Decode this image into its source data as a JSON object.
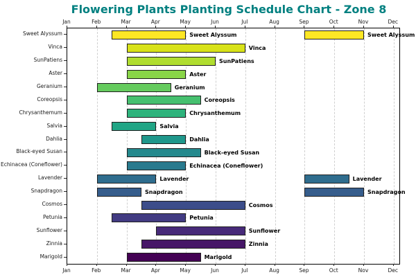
{
  "title": {
    "text": "Flowering Plants Planting Schedule Chart - Zone 8",
    "color": "#008080"
  },
  "chart_data": {
    "type": "bar",
    "subtype": "gantt-planting-schedule",
    "title": "Flowering Plants Planting Schedule Chart - Zone 8",
    "months": [
      "Jan",
      "Feb",
      "Mar",
      "Apr",
      "May",
      "Jun",
      "Jul",
      "Aug",
      "Sep",
      "Oct",
      "Nov",
      "Dec"
    ],
    "x_axis": {
      "unit": "month",
      "range": [
        1,
        12.2
      ],
      "ticks_top": true,
      "ticks_bottom": true,
      "grid": "vertical-dashed"
    },
    "legend": "none",
    "rows": [
      {
        "label": "Sweet Alyssum",
        "color": "#fde725",
        "bars": [
          {
            "start_month": 2.5,
            "end_month": 5.0
          },
          {
            "start_month": 9.0,
            "end_month": 11.0
          }
        ]
      },
      {
        "label": "Vinca",
        "color": "#d8e219",
        "bars": [
          {
            "start_month": 3.0,
            "end_month": 7.0
          }
        ]
      },
      {
        "label": "SunPatiens",
        "color": "#b0dd2f",
        "bars": [
          {
            "start_month": 3.0,
            "end_month": 6.0
          }
        ]
      },
      {
        "label": "Aster",
        "color": "#89d548",
        "bars": [
          {
            "start_month": 3.0,
            "end_month": 5.0
          }
        ]
      },
      {
        "label": "Geranium",
        "color": "#65cb5e",
        "bars": [
          {
            "start_month": 2.0,
            "end_month": 4.5
          }
        ]
      },
      {
        "label": "Coreopsis",
        "color": "#46c06f",
        "bars": [
          {
            "start_month": 3.0,
            "end_month": 5.5
          }
        ]
      },
      {
        "label": "Chrysanthemum",
        "color": "#2eb37c",
        "bars": [
          {
            "start_month": 3.0,
            "end_month": 5.0
          }
        ]
      },
      {
        "label": "Salvia",
        "color": "#21a585",
        "bars": [
          {
            "start_month": 2.5,
            "end_month": 4.0
          }
        ]
      },
      {
        "label": "Dahlia",
        "color": "#1f978b",
        "bars": [
          {
            "start_month": 3.5,
            "end_month": 5.0
          }
        ]
      },
      {
        "label": "Black-eyed Susan",
        "color": "#24898d",
        "bars": [
          {
            "start_month": 3.0,
            "end_month": 5.5
          }
        ]
      },
      {
        "label": "Echinacea (Coneflower)",
        "color": "#297a8e",
        "bars": [
          {
            "start_month": 3.0,
            "end_month": 5.0
          }
        ]
      },
      {
        "label": "Lavender",
        "color": "#2f6d8e",
        "bars": [
          {
            "start_month": 2.0,
            "end_month": 4.0
          },
          {
            "start_month": 9.0,
            "end_month": 10.5
          }
        ]
      },
      {
        "label": "Snapdragon",
        "color": "#365d8c",
        "bars": [
          {
            "start_month": 2.0,
            "end_month": 3.5
          },
          {
            "start_month": 9.0,
            "end_month": 11.0
          }
        ]
      },
      {
        "label": "Cosmos",
        "color": "#3c4d8a",
        "bars": [
          {
            "start_month": 3.5,
            "end_month": 7.0
          }
        ]
      },
      {
        "label": "Petunia",
        "color": "#423b82",
        "bars": [
          {
            "start_month": 2.5,
            "end_month": 5.0
          }
        ]
      },
      {
        "label": "Sunflower",
        "color": "#472a79",
        "bars": [
          {
            "start_month": 4.0,
            "end_month": 7.0
          }
        ]
      },
      {
        "label": "Zinnia",
        "color": "#461667",
        "bars": [
          {
            "start_month": 3.5,
            "end_month": 7.0
          }
        ]
      },
      {
        "label": "Marigold",
        "color": "#440154",
        "bars": [
          {
            "start_month": 3.0,
            "end_month": 5.5
          }
        ]
      }
    ]
  }
}
